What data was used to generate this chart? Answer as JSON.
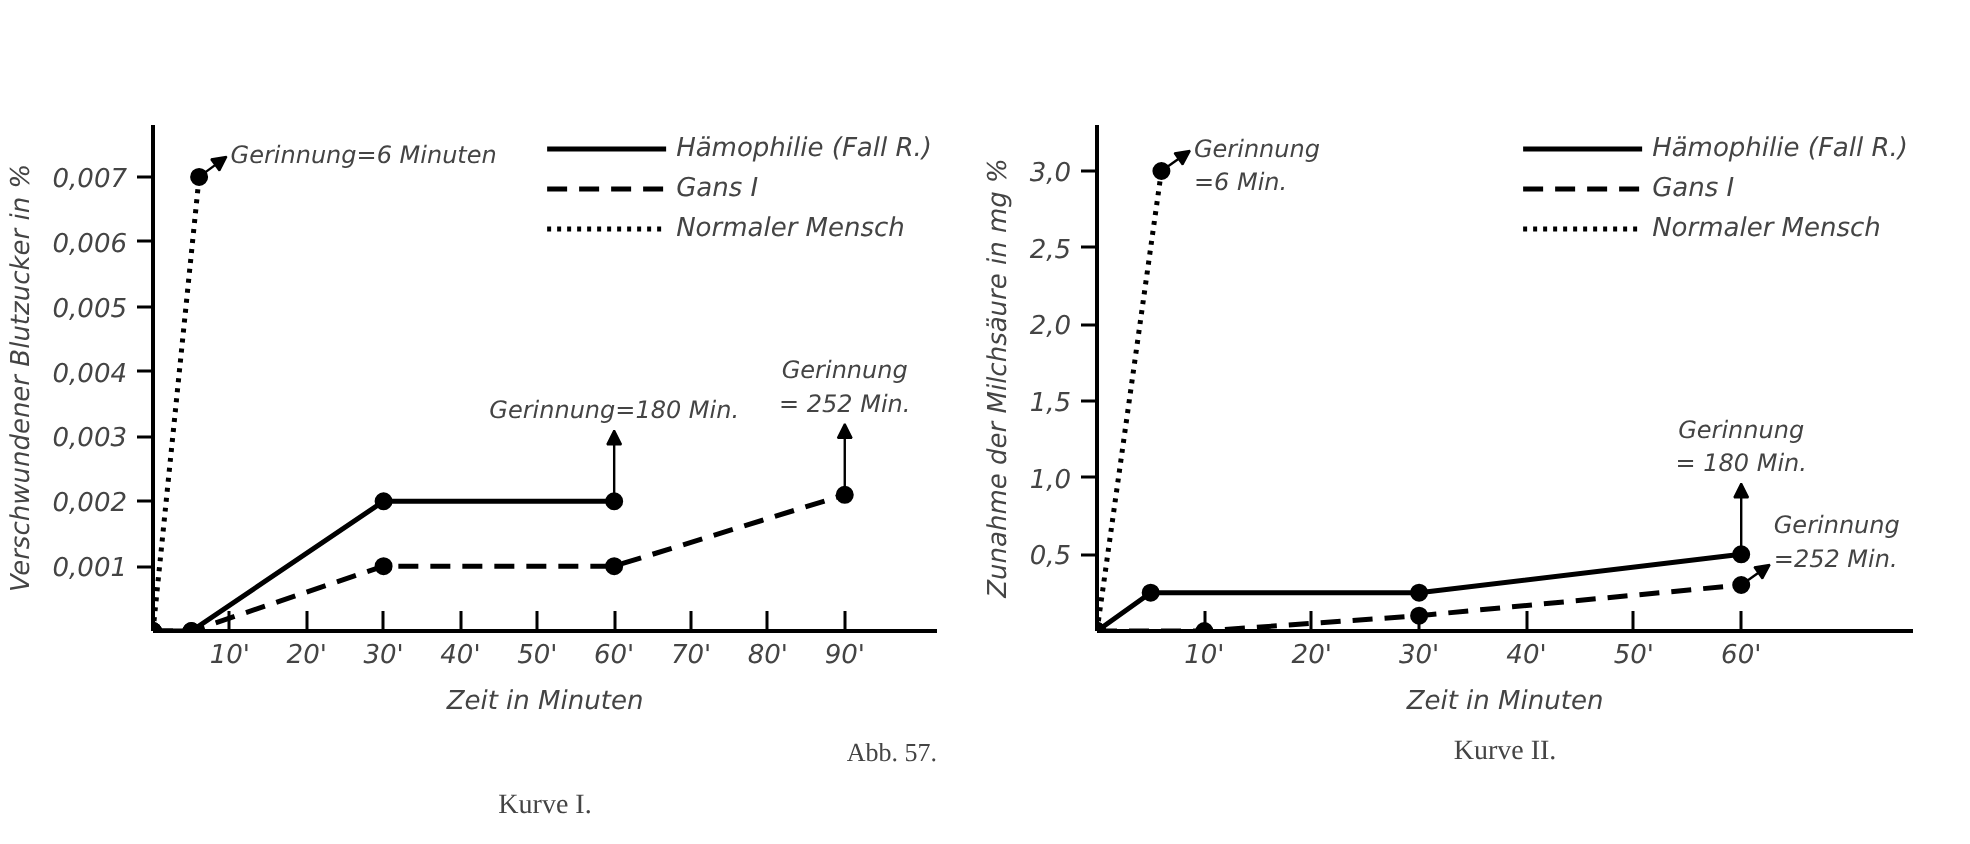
{
  "chart_data": [
    {
      "type": "line",
      "title": "Kurve I.",
      "xlabel": "Zeit in Minuten",
      "ylabel": "Verschwundener Blutzucker in %",
      "xlim": [
        0,
        102
      ],
      "ylim": [
        0,
        0.0078
      ],
      "xticks": [
        {
          "value": 10,
          "label": "10'"
        },
        {
          "value": 20,
          "label": "20'"
        },
        {
          "value": 30,
          "label": "30'"
        },
        {
          "value": 40,
          "label": "40'"
        },
        {
          "value": 50,
          "label": "50'"
        },
        {
          "value": 60,
          "label": "60'"
        },
        {
          "value": 70,
          "label": "70'"
        },
        {
          "value": 80,
          "label": "80'"
        },
        {
          "value": 90,
          "label": "90'"
        }
      ],
      "yticks": [
        {
          "value": 0.001,
          "label": "0,001"
        },
        {
          "value": 0.002,
          "label": "0,002"
        },
        {
          "value": 0.003,
          "label": "0,003"
        },
        {
          "value": 0.004,
          "label": "0,004"
        },
        {
          "value": 0.005,
          "label": "0,005"
        },
        {
          "value": 0.006,
          "label": "0,006"
        },
        {
          "value": 0.007,
          "label": "0,007"
        }
      ],
      "grid": false,
      "legend": "top right",
      "marker": "circle",
      "series": [
        {
          "name": "Hämophilie (Fall R.)",
          "color": "#000000",
          "line_style": "solid",
          "x": [
            0,
            5,
            30,
            60
          ],
          "values": [
            0,
            0,
            0.002,
            0.002
          ]
        },
        {
          "name": "Gans I",
          "color": "#000000",
          "line_style": "dashed",
          "x": [
            0,
            5,
            30,
            60,
            90
          ],
          "values": [
            0,
            0,
            0.001,
            0.001,
            0.0021
          ]
        },
        {
          "name": "Normaler Mensch",
          "color": "#000000",
          "line_style": "dotted",
          "x": [
            0,
            6
          ],
          "values": [
            0,
            0.007
          ]
        }
      ],
      "annotations": [
        {
          "text": "Gerinnung=6 Minuten",
          "x": 6,
          "y": 0.007
        },
        {
          "text": "Gerinnung=180 Min.",
          "x": 60,
          "y": 0.002
        },
        {
          "text": "Gerinnung\n= 252 Min.",
          "x": 90,
          "y": 0.0021
        },
        "Abb. 57."
      ]
    },
    {
      "type": "line",
      "title": "Kurve II.",
      "xlabel": "Zeit in Minuten",
      "ylabel": "Zunahme der Milchsäure in mg %",
      "xlim": [
        0,
        76
      ],
      "ylim": [
        0,
        3.3
      ],
      "xticks": [
        {
          "value": 10,
          "label": "10'"
        },
        {
          "value": 20,
          "label": "20'"
        },
        {
          "value": 30,
          "label": "30'"
        },
        {
          "value": 40,
          "label": "40'"
        },
        {
          "value": 50,
          "label": "50'"
        },
        {
          "value": 60,
          "label": "60'"
        }
      ],
      "yticks": [
        {
          "value": 0.5,
          "label": "0,5"
        },
        {
          "value": 1.0,
          "label": "1,0"
        },
        {
          "value": 1.5,
          "label": "1,5"
        },
        {
          "value": 2.0,
          "label": "2,0"
        },
        {
          "value": 2.5,
          "label": "2,5"
        },
        {
          "value": 3.0,
          "label": "3,0"
        }
      ],
      "grid": false,
      "legend": "top right",
      "marker": "circle",
      "series": [
        {
          "name": "Hämophilie (Fall R.)",
          "color": "#000000",
          "line_style": "solid",
          "x": [
            0,
            5,
            30,
            60
          ],
          "values": [
            0,
            0.25,
            0.25,
            0.5
          ]
        },
        {
          "name": "Gans I",
          "color": "#000000",
          "line_style": "dashed",
          "x": [
            0,
            10,
            30,
            60
          ],
          "values": [
            0,
            0,
            0.1,
            0.3
          ]
        },
        {
          "name": "Normaler Mensch",
          "color": "#000000",
          "line_style": "dotted",
          "x": [
            0,
            6
          ],
          "values": [
            0,
            3.0
          ]
        }
      ],
      "annotations": [
        {
          "text": "Gerinnung\n=6 Min.",
          "x": 6,
          "y": 3.0
        },
        {
          "text": "Gerinnung\n= 180 Min.",
          "x": 60,
          "y": 0.5
        },
        {
          "text": "Gerinnung\n=252 Min.",
          "x": 60,
          "y": 0.3
        }
      ]
    }
  ]
}
